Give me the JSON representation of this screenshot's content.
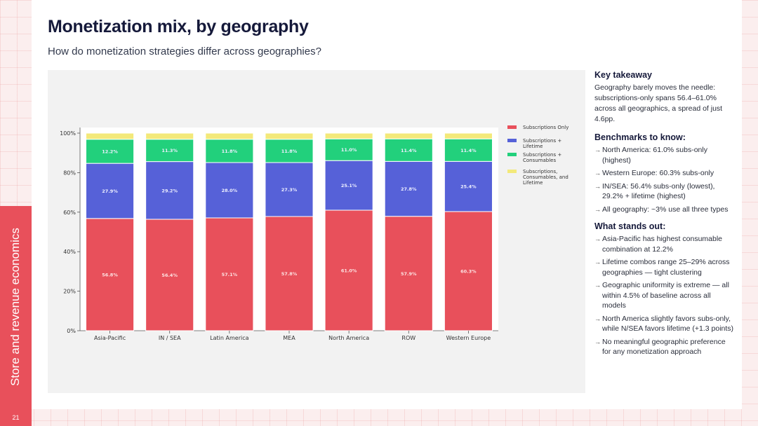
{
  "page": {
    "title": "Monetization mix, by geography",
    "subtitle": "How do monetization strategies differ across geographies?",
    "section_label": "Store and revenue economics",
    "page_number": "21"
  },
  "panel": {
    "key_takeaway": {
      "heading": "Key takeaway",
      "text": "Geography barely moves the needle: subscriptions-only spans 56.4–61.0% across all geographics, a spread of just 4.6pp."
    },
    "benchmarks": {
      "heading": "Benchmarks to know:",
      "items": [
        "North America: 61.0% subs-only (highest)",
        "Western Europe: 60.3% subs-only",
        "IN/SEA: 56.4% subs-only (lowest), 29.2% + lifetime (highest)",
        "All geography: ~3% use all three types"
      ]
    },
    "stands_out": {
      "heading": "What stands out:",
      "items": [
        "Asia-Pacific has highest consumable combination at 12.2%",
        "Lifetime combos range 25–29% across geographies — tight clustering",
        "Geographic uniformity is extreme — all within 4.5% of baseline across all models",
        "North America slightly favors subs-only, while N/SEA favors lifetime (+1.3 points)",
        "No meaningful geographic preference for any monetization approach"
      ]
    }
  },
  "chart_data": {
    "type": "bar",
    "stacked": true,
    "categories": [
      "Asia-Pacific",
      "IN / SEA",
      "Latin America",
      "MEA",
      "North America",
      "ROW",
      "Western Europe"
    ],
    "series": [
      {
        "name": "Subscriptions Only",
        "color": "#e8505b",
        "values": [
          56.8,
          56.4,
          57.1,
          57.8,
          61.0,
          57.9,
          60.3
        ]
      },
      {
        "name": "Subscriptions + Lifetime",
        "color": "#5661d8",
        "values": [
          27.9,
          29.2,
          28.0,
          27.3,
          25.1,
          27.8,
          25.4
        ]
      },
      {
        "name": "Subscriptions + Consumables",
        "color": "#22d07c",
        "values": [
          12.2,
          11.3,
          11.8,
          11.8,
          11.0,
          11.4,
          11.4
        ]
      },
      {
        "name": "Subscriptions, Consumables, and Lifetime",
        "color": "#f3e97a",
        "values": [
          3.1,
          3.1,
          3.1,
          3.1,
          2.9,
          2.9,
          2.9
        ]
      }
    ],
    "data_labels": [
      [
        "56.8%",
        "56.4%",
        "57.1%",
        "57.8%",
        "61.0%",
        "57.9%",
        "60.3%"
      ],
      [
        "27.9%",
        "29.2%",
        "28.0%",
        "27.3%",
        "25.1%",
        "27.8%",
        "25.4%"
      ],
      [
        "12.2%",
        "11.3%",
        "11.8%",
        "11.8%",
        "11.0%",
        "11.4%",
        "11.4%"
      ]
    ],
    "ylim": [
      0,
      100
    ],
    "yticks": [
      "0%",
      "20%",
      "40%",
      "60%",
      "80%",
      "100%"
    ],
    "ytick_values": [
      0,
      20,
      40,
      60,
      80,
      100
    ],
    "legend_position": "right",
    "grid": false
  }
}
